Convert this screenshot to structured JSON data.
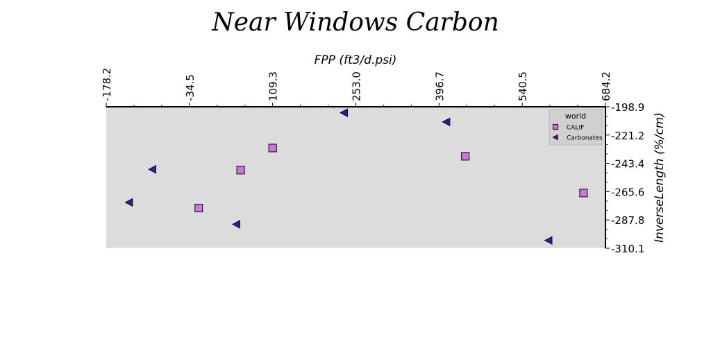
{
  "chart_data": {
    "type": "scatter",
    "title": "Near Windows Carbon",
    "xlabel": "FPP (ft3/d.psi)",
    "ylabel": "InverseLength (%/cm)",
    "x_axis_position": "top",
    "y_axis_position": "right",
    "y_inverted": true,
    "xlim": [
      -178.2,
      684.2
    ],
    "ylim": [
      -310.1,
      -198.9
    ],
    "x_ticks": [
      "-178.2",
      "-34.5",
      "109.3",
      "253.0",
      "396.7",
      "540.5",
      "684.2"
    ],
    "y_ticks": [
      "-198.9",
      "-221.2",
      "-243.4",
      "-265.6",
      "-287.8",
      "-310.1"
    ],
    "grid": false,
    "background": "#dcdcdc",
    "legend": {
      "title": "world",
      "placement": "top-right"
    },
    "series": [
      {
        "name": "CALIF",
        "marker": "square",
        "color": "#cc77dd",
        "points": [
          {
            "x": 109.3,
            "y": -231.3
          },
          {
            "x": 54.0,
            "y": -248.7
          },
          {
            "x": -18.4,
            "y": -278.5
          },
          {
            "x": 442.1,
            "y": -237.8
          },
          {
            "x": 646.3,
            "y": -266.7
          }
        ]
      },
      {
        "name": "Carbonates",
        "marker": "triangle-left",
        "color": "#2222aa",
        "points": [
          {
            "x": 232.7,
            "y": -203.6
          },
          {
            "x": 409.4,
            "y": -210.8
          },
          {
            "x": -98.3,
            "y": -248.1
          },
          {
            "x": -138.7,
            "y": -274.1
          },
          {
            "x": 46.7,
            "y": -291.3
          },
          {
            "x": 585.9,
            "y": -304.0
          }
        ]
      }
    ]
  }
}
